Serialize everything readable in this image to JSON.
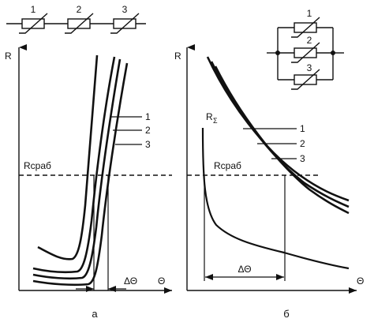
{
  "left_panel": {
    "caption": "а",
    "axis_y": "R",
    "axis_x": "Θ",
    "threshold_label": "Rсраб",
    "delta_label": "ΔΘ",
    "curve_labels": [
      "1",
      "2",
      "3"
    ],
    "series_diagram_labels": [
      "1",
      "2",
      "3"
    ]
  },
  "right_panel": {
    "caption": "б",
    "axis_y": "R",
    "axis_x": "Θ",
    "threshold_label": "Rсраб",
    "delta_label": "ΔΘ",
    "sum_curve_label": "R",
    "sum_curve_subscript": "Σ",
    "curve_labels": [
      "1",
      "2",
      "3"
    ],
    "parallel_diagram_labels": [
      "1",
      "2",
      "3"
    ]
  }
}
